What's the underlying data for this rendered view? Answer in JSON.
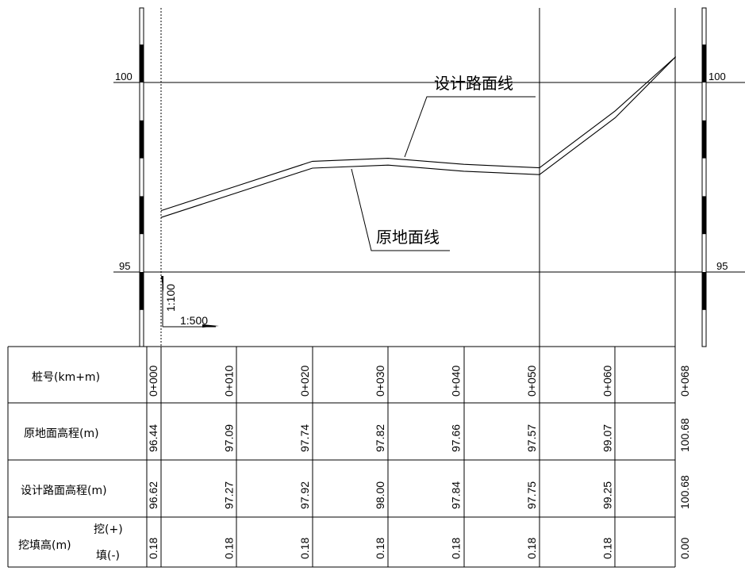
{
  "labels": {
    "design_line": "设计路面线",
    "ground_line": "原地面线",
    "vertical_scale": "1:100",
    "horizontal_scale": "1:500"
  },
  "axis": {
    "left_ticks": [
      "100",
      "95"
    ],
    "right_ticks": [
      "100",
      "95"
    ],
    "ylim": [
      93.15,
      102.6
    ]
  },
  "table": {
    "row_headers": {
      "station": "桩号(km+m)",
      "ground_elev": "原地面高程(m)",
      "design_elev": "设计路面高程(m)",
      "cut_fill_main": "挖填高(m)",
      "cut": "挖(+)",
      "fill": "填(-)"
    },
    "stations": [
      "0+000",
      "0+010",
      "0+020",
      "0+030",
      "0+040",
      "0+050",
      "0+060",
      "0+068"
    ],
    "ground": [
      "96.44",
      "97.09",
      "97.74",
      "97.82",
      "97.66",
      "97.57",
      "99.07",
      "100.68"
    ],
    "design": [
      "96.62",
      "97.27",
      "97.92",
      "98.00",
      "97.84",
      "97.75",
      "99.25",
      "100.68"
    ],
    "cutfill": [
      "0.18",
      "0.18",
      "0.18",
      "0.18",
      "0.18",
      "0.18",
      "0.18",
      "0.00"
    ]
  },
  "chart_data": {
    "type": "line",
    "x": [
      0,
      10,
      20,
      30,
      40,
      50,
      60,
      68
    ],
    "series": [
      {
        "name": "设计路面线",
        "values": [
          96.62,
          97.27,
          97.92,
          98.0,
          97.84,
          97.75,
          99.25,
          100.68
        ]
      },
      {
        "name": "原地面线",
        "values": [
          96.44,
          97.09,
          97.74,
          97.82,
          97.66,
          97.57,
          99.07,
          100.68
        ]
      }
    ],
    "ylim": [
      93.15,
      102.6
    ],
    "y_ticks": [
      95,
      100
    ],
    "grid": true
  }
}
